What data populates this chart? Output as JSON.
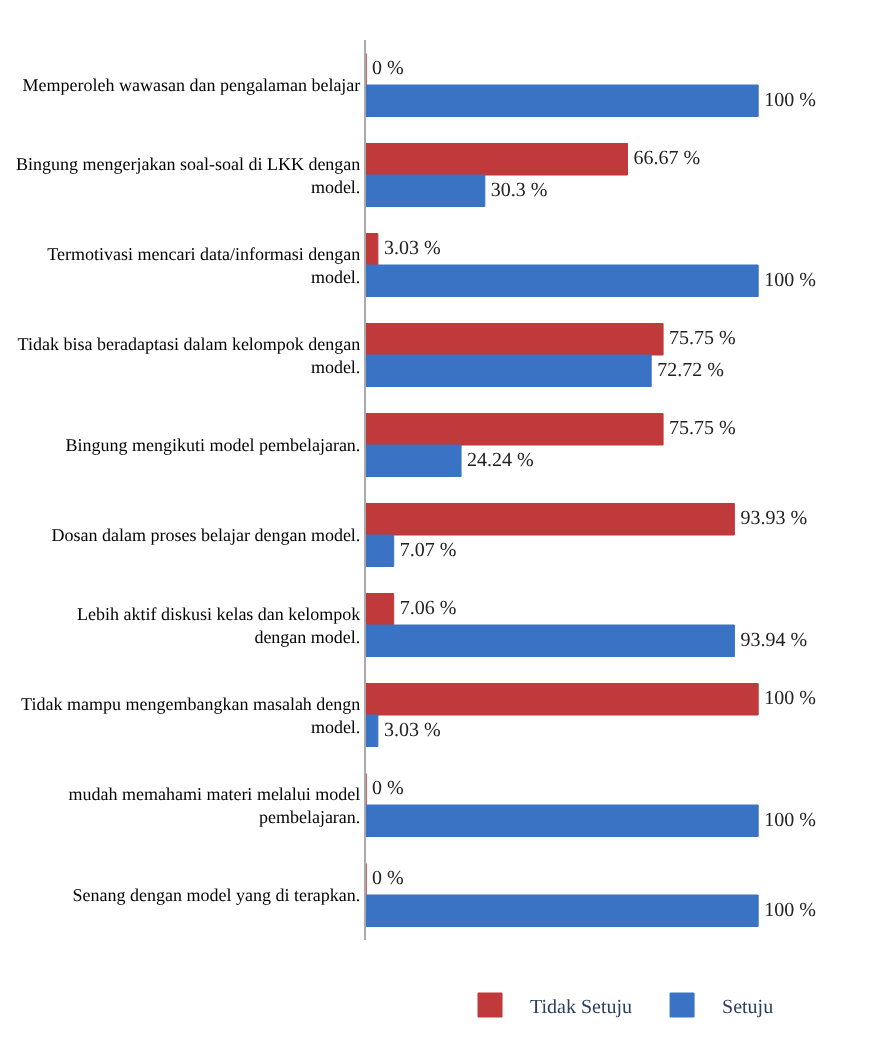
{
  "chart_data": {
    "type": "bar",
    "orientation": "horizontal",
    "categories": [
      "Memperoleh wawasan dan pengalaman belajar",
      "Bingung mengerjakan soal-soal di LKK dengan model.",
      "Termotivasi mencari data/informasi dengan model.",
      "Tidak bisa beradaptasi dalam kelompok dengan model.",
      "Bingung mengikuti model pembelajaran.",
      "Dosan dalam proses belajar dengan model.",
      "Lebih aktif diskusi kelas dan kelompok dengan model.",
      "Tidak mampu mengembangkan masalah dengn model.",
      "mudah memahami materi melalui model pembelajaran.",
      "Senang dengan model yang di terapkan."
    ],
    "series": [
      {
        "name": "Tidak Setuju",
        "color": "#c0393b",
        "values": [
          0,
          66.67,
          3.03,
          75.75,
          75.75,
          93.93,
          7.06,
          100,
          0,
          0
        ],
        "value_labels": [
          "0 %",
          "66.67 %",
          "3.03 %",
          "75.75 %",
          "75.75 %",
          "93.93 %",
          "7.06 %",
          "100 %",
          "0 %",
          "0 %"
        ]
      },
      {
        "name": "Setuju",
        "color": "#3a73c4",
        "values": [
          100,
          30.3,
          100,
          72.72,
          24.24,
          7.07,
          93.94,
          3.03,
          100,
          100
        ],
        "value_labels": [
          "100 %",
          "30.3 %",
          "100 %",
          "72.72 %",
          "24.24 %",
          "7.07 %",
          "93.94 %",
          "3.03 %",
          "100 %",
          "100 %"
        ]
      }
    ],
    "legend": "bottom"
  }
}
